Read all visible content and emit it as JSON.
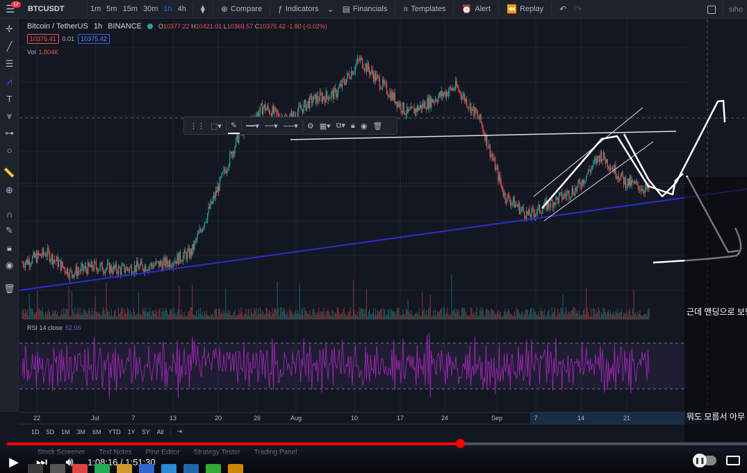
{
  "topbar": {
    "menu_badge": "12",
    "symbol": "BTCUSDT",
    "timeframes": [
      "1m",
      "5m",
      "15m",
      "30m",
      "1h",
      "4h"
    ],
    "active_timeframe": "1h",
    "buttons": {
      "compare": "Compare",
      "indicators": "Indicators",
      "financials": "Financials",
      "templates": "Templates",
      "alert": "Alert",
      "replay": "Replay"
    },
    "user": "siho"
  },
  "legend": {
    "symbol_name": "Bitcoin / TetherUS",
    "interval": "1h",
    "exchange": "BINANCE",
    "ohlc": {
      "o_label": "O",
      "o": "10377.22",
      "h_label": "H",
      "h": "10421.01",
      "l_label": "L",
      "l": "10369.57",
      "c_label": "C",
      "c": "10375.42",
      "change": "-1.80 (-0.02%)"
    },
    "bid": "10375.41",
    "spread": "0.01",
    "ask": "10375.42",
    "volume_label": "Vol",
    "volume_value": "1.804K",
    "rsi_label": "RSI 14 close",
    "rsi_value": "52.06"
  },
  "time_axis": [
    "22",
    "Jul",
    "7",
    "13",
    "20",
    "26",
    "Aug",
    "10",
    "17",
    "24",
    "Sep",
    "7",
    "14",
    "21"
  ],
  "range_buttons": [
    "1D",
    "5D",
    "1M",
    "3M",
    "6M",
    "YTD",
    "1Y",
    "5Y",
    "All"
  ],
  "panel_tabs": [
    "Stock Screener",
    "Text Notes",
    "Pine Editor",
    "Strategy Tester",
    "Trading Panel"
  ],
  "video": {
    "current_time": "1:08:16",
    "duration": "1:51:30",
    "time_separator": "/",
    "progress": 0.612
  },
  "subtitles": [
    "근데 앤딩으로 보면",
    "뭐도 모름서 아무"
  ],
  "colors": {
    "background": "#131722",
    "candle_up": "#26a69a",
    "candle_down": "#ef5350",
    "trendline": "#2a2ed0",
    "rsi": "#9c27b0",
    "active": "#2962ff"
  },
  "chart_data": {
    "type": "candlestick",
    "symbol": "BTCUSDT",
    "interval": "1h",
    "x_ticks": [
      "22",
      "Jul",
      "7",
      "13",
      "20",
      "26",
      "Aug",
      "10",
      "17",
      "24",
      "Sep",
      "7",
      "14",
      "21"
    ],
    "price_path_approx": [
      9300,
      9450,
      9150,
      9250,
      9200,
      9250,
      9300,
      9450,
      10300,
      11200,
      11600,
      11400,
      11700,
      11800,
      12300,
      11900,
      11500,
      11700,
      11900,
      11400,
      10300,
      10000,
      10200,
      10400,
      10900,
      10500,
      10375
    ],
    "indicators": [
      "Vol",
      "RSI 14 close"
    ]
  }
}
